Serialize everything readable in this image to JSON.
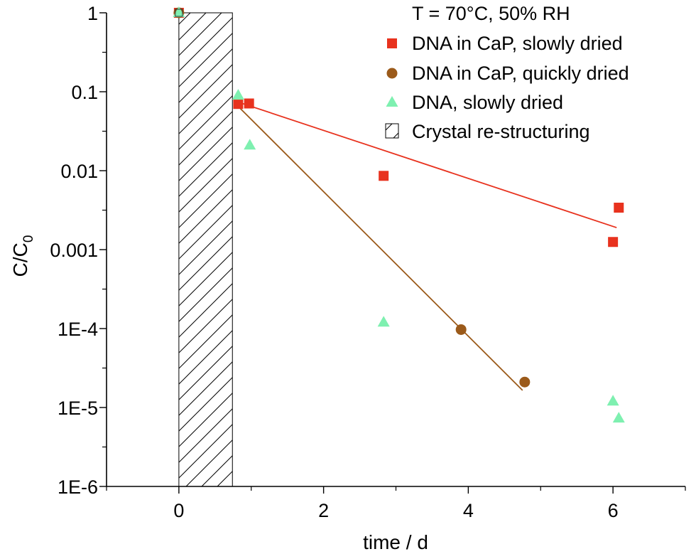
{
  "chart_data": {
    "type": "scatter",
    "title": "",
    "xlabel": "time / d",
    "ylabel": "C/C",
    "ylabel_subscript": "0",
    "xlim": [
      -1,
      7
    ],
    "ylim": [
      1e-06,
      1
    ],
    "yscale": "log",
    "xticks": [
      0,
      2,
      4,
      6
    ],
    "xtick_labels": [
      "0",
      "2",
      "4",
      "6"
    ],
    "yticks": [
      1,
      0.1,
      0.01,
      0.001,
      0.0001,
      1e-05,
      1e-06
    ],
    "ytick_labels": [
      "1",
      "0.1",
      "0.01",
      "0.001",
      "1E-4",
      "1E-5",
      "1E-6"
    ],
    "legend_title": "T = 70°C, 50% RH",
    "legend_position": "top-right",
    "series": [
      {
        "name": "DNA in CaP, slowly dried",
        "marker": "square",
        "color": "#e8321e",
        "points": [
          [
            0,
            1
          ],
          [
            0.82,
            0.07
          ],
          [
            0.97,
            0.071
          ],
          [
            2.83,
            0.0086
          ],
          [
            6.0,
            0.00125
          ],
          [
            6.08,
            0.0034
          ]
        ],
        "fit": [
          [
            0.8,
            0.075
          ],
          [
            6.05,
            0.0019
          ]
        ]
      },
      {
        "name": "DNA in CaP, quickly dried",
        "marker": "circle",
        "color": "#9b5a1a",
        "points": [
          [
            0,
            1
          ],
          [
            3.9,
            9.7e-05
          ],
          [
            4.78,
            2.1e-05
          ]
        ],
        "fit": [
          [
            0.8,
            0.068
          ],
          [
            4.75,
            1.65e-05
          ]
        ]
      },
      {
        "name": "DNA, slowly dried",
        "marker": "triangle",
        "color": "#7ef0b0",
        "points": [
          [
            0,
            1
          ],
          [
            0.82,
            0.09
          ],
          [
            0.98,
            0.021
          ],
          [
            2.83,
            0.00012
          ],
          [
            6.0,
            1.2e-05
          ],
          [
            6.08,
            7.3e-06
          ]
        ]
      }
    ],
    "shaded_region": {
      "name": "Crystal re-structuring",
      "x_range": [
        0,
        0.74
      ],
      "y_range": [
        1e-06,
        1
      ],
      "pattern": "diagonal-hatch"
    }
  }
}
